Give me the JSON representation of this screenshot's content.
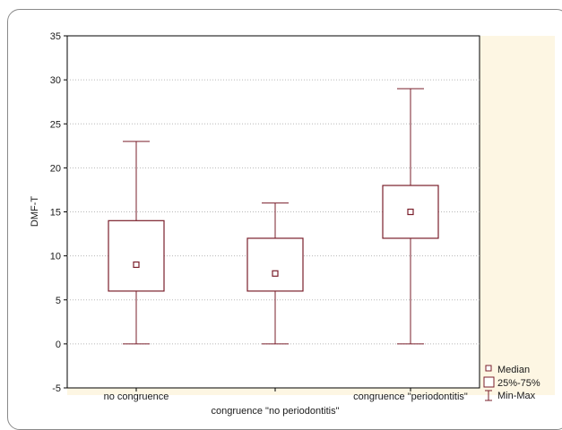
{
  "chart_data": {
    "type": "boxplot",
    "ylabel": "DMF-T",
    "ylim": [
      -5,
      35
    ],
    "yticks": [
      "-5",
      "0",
      "5",
      "10",
      "15",
      "20",
      "25",
      "30",
      "35"
    ],
    "grid": "horizontal dotted",
    "categories": [
      "no congruence",
      "congruence \"no periodontitis\"",
      "congruence \"periodontitis\""
    ],
    "series": [
      {
        "category": "no congruence",
        "min": 0,
        "q1": 6,
        "median": 9,
        "q3": 14,
        "max": 23
      },
      {
        "category": "congruence \"no periodontitis\"",
        "min": 0,
        "q1": 6,
        "median": 8,
        "q3": 12,
        "max": 16
      },
      {
        "category": "congruence \"periodontitis\"",
        "min": 0,
        "q1": 12,
        "median": 15,
        "q3": 18,
        "max": 29
      }
    ],
    "legend": {
      "placement": "bottom-right",
      "items": [
        "Median",
        "25%-75%",
        "Min-Max"
      ]
    },
    "colors": {
      "box": "#7a1f2b",
      "plot_bg": "#ffffff",
      "outer_bg": "#fdf6e3",
      "grid": "#b8b8b8"
    }
  }
}
